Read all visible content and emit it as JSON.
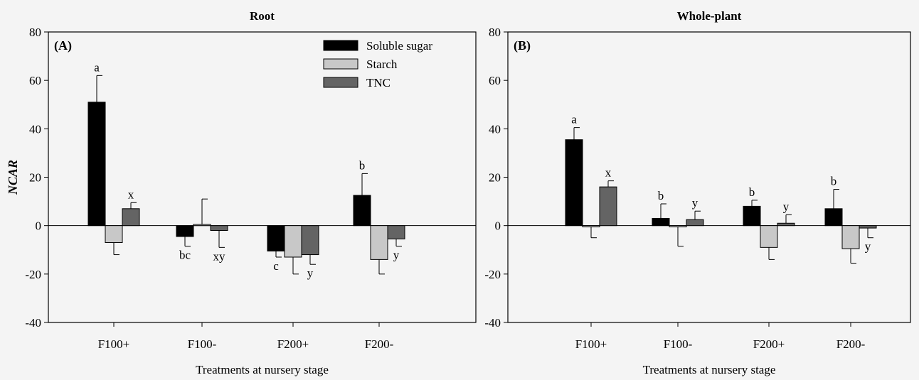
{
  "chart_data": [
    {
      "type": "bar",
      "title": "Root",
      "panel_label": "(A)",
      "xlabel": "Treatments at nursery stage",
      "ylabel": "NCAR",
      "ylim": [
        -40,
        80
      ],
      "yticks": [
        -40,
        -20,
        0,
        20,
        40,
        60,
        80
      ],
      "categories": [
        "F100+",
        "F100-",
        "F200+",
        "F200-"
      ],
      "legend_position": "top-right",
      "grid": false,
      "series": [
        {
          "name": "Soluble sugar",
          "color": "#000000",
          "values": [
            51,
            -4.5,
            -10.5,
            12.5
          ],
          "errors": [
            11,
            4,
            2.5,
            9
          ],
          "letters": [
            "a",
            "bc",
            "c",
            "b"
          ]
        },
        {
          "name": "Starch",
          "color": "#c8c8c8",
          "values": [
            -7,
            0.5,
            -13,
            -14
          ],
          "errors": [
            5,
            10.5,
            7,
            6
          ],
          "letters": [
            "",
            "",
            "",
            ""
          ]
        },
        {
          "name": "TNC",
          "color": "#646464",
          "values": [
            7,
            -2,
            -12,
            -5.5
          ],
          "errors": [
            2.5,
            7,
            4,
            3
          ],
          "letters": [
            "x",
            "xy",
            "y",
            "y"
          ]
        }
      ]
    },
    {
      "type": "bar",
      "title": "Whole-plant",
      "panel_label": "(B)",
      "xlabel": "Treatments at nursery stage",
      "ylabel": "",
      "ylim": [
        -40,
        80
      ],
      "yticks": [
        -40,
        -20,
        0,
        20,
        40,
        60,
        80
      ],
      "categories": [
        "F100+",
        "F100-",
        "F200+",
        "F200-"
      ],
      "grid": false,
      "series": [
        {
          "name": "Soluble sugar",
          "color": "#000000",
          "values": [
            35.5,
            3,
            8,
            7
          ],
          "errors": [
            5,
            6,
            2.5,
            8
          ],
          "letters": [
            "a",
            "b",
            "b",
            "b"
          ]
        },
        {
          "name": "Starch",
          "color": "#c8c8c8",
          "values": [
            -0.5,
            -0.5,
            -9,
            -9.5
          ],
          "errors": [
            4.5,
            8,
            5,
            6
          ],
          "letters": [
            "",
            "",
            "",
            ""
          ]
        },
        {
          "name": "TNC",
          "color": "#646464",
          "values": [
            16,
            2.5,
            1,
            -1
          ],
          "errors": [
            2.5,
            3.5,
            3.5,
            4
          ],
          "letters": [
            "x",
            "y",
            "y",
            "y"
          ]
        }
      ]
    }
  ]
}
